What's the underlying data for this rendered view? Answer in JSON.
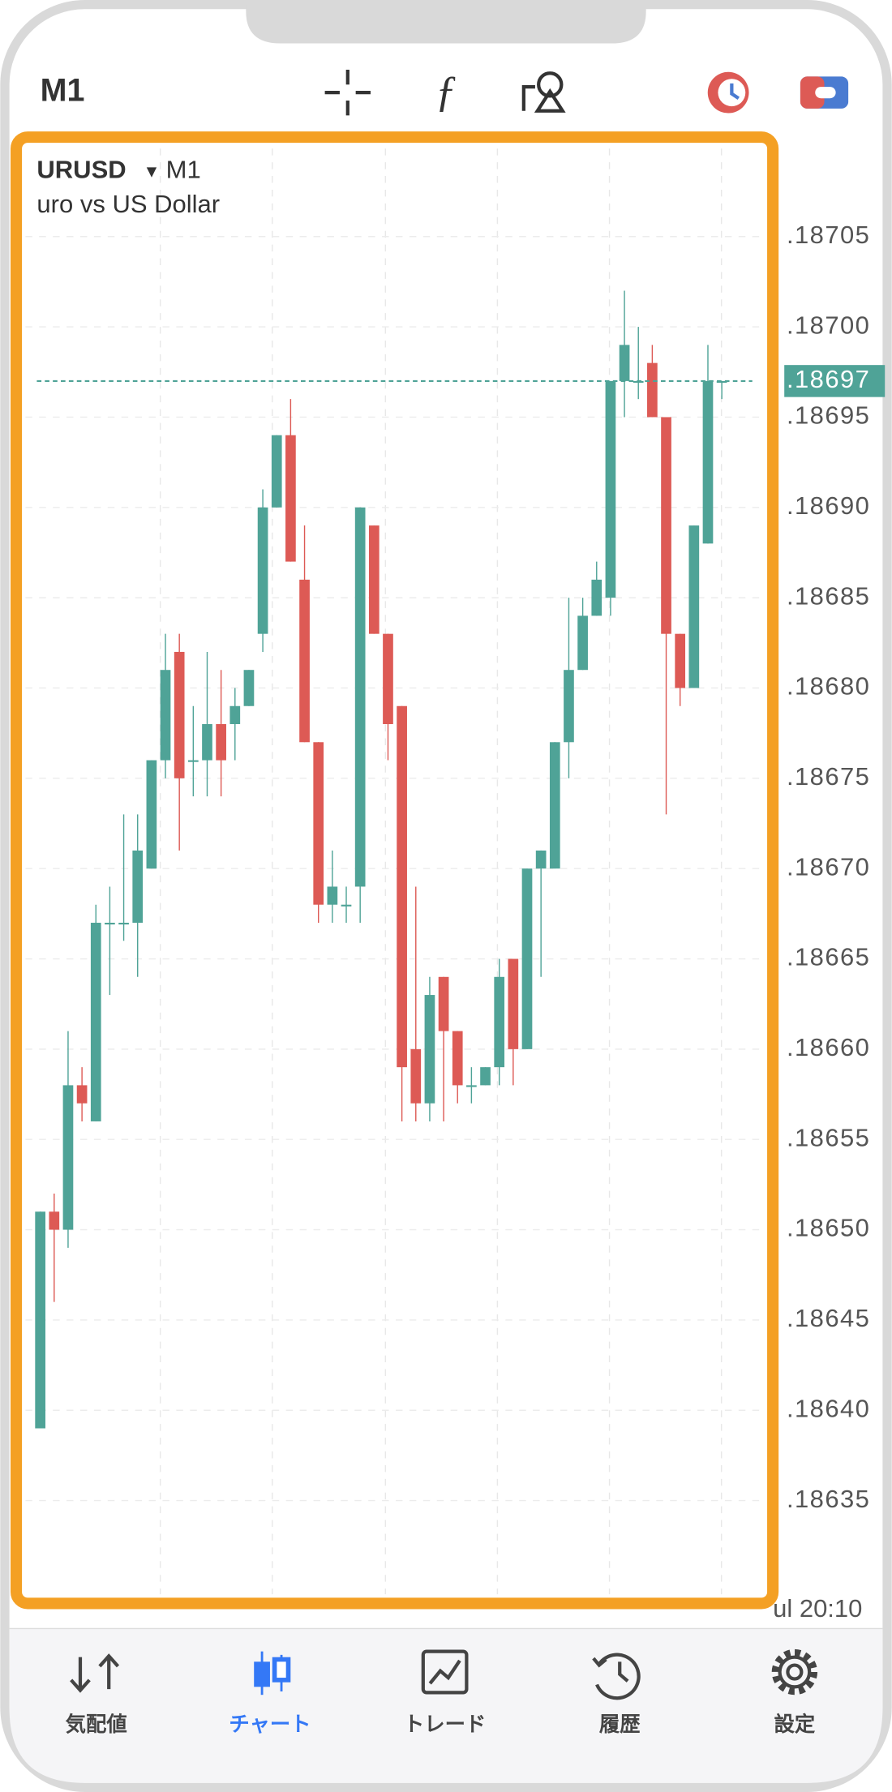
{
  "header": {
    "timeframe": "M1"
  },
  "chart_data": {
    "type": "candlestick",
    "symbol": "URUSD",
    "timeframe": "M1",
    "description": "uro vs US Dollar",
    "up_color": "#4fa397",
    "down_color": "#dd5a55",
    "grid": true,
    "ylim": [
      0.1863,
      0.1871
    ],
    "yticks": [
      {
        "value": 0.18705,
        "label": ".18705"
      },
      {
        "value": 0.187,
        "label": ".18700"
      },
      {
        "value": 0.18695,
        "label": ".18695"
      },
      {
        "value": 0.1869,
        "label": ".18690"
      },
      {
        "value": 0.18685,
        "label": ".18685"
      },
      {
        "value": 0.1868,
        "label": ".18680"
      },
      {
        "value": 0.18675,
        "label": ".18675"
      },
      {
        "value": 0.1867,
        "label": ".18670"
      },
      {
        "value": 0.18665,
        "label": ".18665"
      },
      {
        "value": 0.1866,
        "label": ".18660"
      },
      {
        "value": 0.18655,
        "label": ".18655"
      },
      {
        "value": 0.1865,
        "label": ".18650"
      },
      {
        "value": 0.18645,
        "label": ".18645"
      },
      {
        "value": 0.1864,
        "label": ".18640"
      },
      {
        "value": 0.18635,
        "label": ".18635"
      }
    ],
    "last_price": {
      "value": 0.18697,
      "label": ".18697"
    },
    "x_label": "ul 20:10",
    "open": [
      0.18639,
      0.18651,
      0.1865,
      0.18658,
      0.18656,
      0.18667,
      0.18667,
      0.18667,
      0.1867,
      0.18676,
      0.18682,
      0.18676,
      0.18676,
      0.18678,
      0.18678,
      0.18679,
      0.18683,
      0.1869,
      0.18694,
      0.18686,
      0.18677,
      0.18668,
      0.18668,
      0.18669,
      0.18689,
      0.18683,
      0.18679,
      0.1866,
      0.18657,
      0.18664,
      0.18661,
      0.18658,
      0.18658,
      0.18659,
      0.18665,
      0.1866,
      0.1867,
      0.1867,
      0.18677,
      0.18681,
      0.18684,
      0.18685,
      0.18697,
      0.18697,
      0.18698,
      0.18695,
      0.18683,
      0.1868,
      0.18688,
      0.18697
    ],
    "close": [
      0.18651,
      0.1865,
      0.18658,
      0.18657,
      0.18667,
      0.18667,
      0.18667,
      0.18671,
      0.18676,
      0.18681,
      0.18675,
      0.18676,
      0.18678,
      0.18676,
      0.18679,
      0.18681,
      0.1869,
      0.18694,
      0.18687,
      0.18677,
      0.18668,
      0.18669,
      0.18668,
      0.1869,
      0.18683,
      0.18678,
      0.18659,
      0.18657,
      0.18663,
      0.18661,
      0.18658,
      0.18658,
      0.18659,
      0.18664,
      0.1866,
      0.1867,
      0.18671,
      0.18677,
      0.18681,
      0.18684,
      0.18686,
      0.18697,
      0.18699,
      0.18697,
      0.18695,
      0.18683,
      0.1868,
      0.18689,
      0.18697,
      0.18697
    ],
    "high": [
      0.18651,
      0.18652,
      0.18661,
      0.18659,
      0.18668,
      0.18669,
      0.18673,
      0.18673,
      0.18676,
      0.18683,
      0.18683,
      0.18679,
      0.18682,
      0.18681,
      0.1868,
      0.18681,
      0.18691,
      0.18694,
      0.18696,
      0.18689,
      0.18677,
      0.18671,
      0.18669,
      0.1869,
      0.18689,
      0.18683,
      0.18679,
      0.18669,
      0.18664,
      0.18664,
      0.18661,
      0.18659,
      0.18659,
      0.18665,
      0.18665,
      0.1867,
      0.18671,
      0.18677,
      0.18685,
      0.18685,
      0.18687,
      0.18697,
      0.18702,
      0.187,
      0.18699,
      0.18695,
      0.18683,
      0.18689,
      0.18699,
      0.18697
    ],
    "low": [
      0.18639,
      0.18646,
      0.18649,
      0.18656,
      0.18656,
      0.18663,
      0.18666,
      0.18664,
      0.1867,
      0.18675,
      0.18671,
      0.18674,
      0.18674,
      0.18674,
      0.18676,
      0.18679,
      0.18682,
      0.1869,
      0.18687,
      0.18677,
      0.18667,
      0.18667,
      0.18667,
      0.18667,
      0.18683,
      0.18676,
      0.18656,
      0.18656,
      0.18656,
      0.18656,
      0.18657,
      0.18657,
      0.18658,
      0.18658,
      0.18658,
      0.1866,
      0.18664,
      0.1867,
      0.18675,
      0.18681,
      0.18684,
      0.18684,
      0.18695,
      0.18696,
      0.18695,
      0.18673,
      0.18679,
      0.1868,
      0.18688,
      0.18696
    ]
  },
  "tabbar": {
    "items": [
      "気配値",
      "チャート",
      "トレード",
      "履歴",
      "設定"
    ],
    "active": 1
  }
}
